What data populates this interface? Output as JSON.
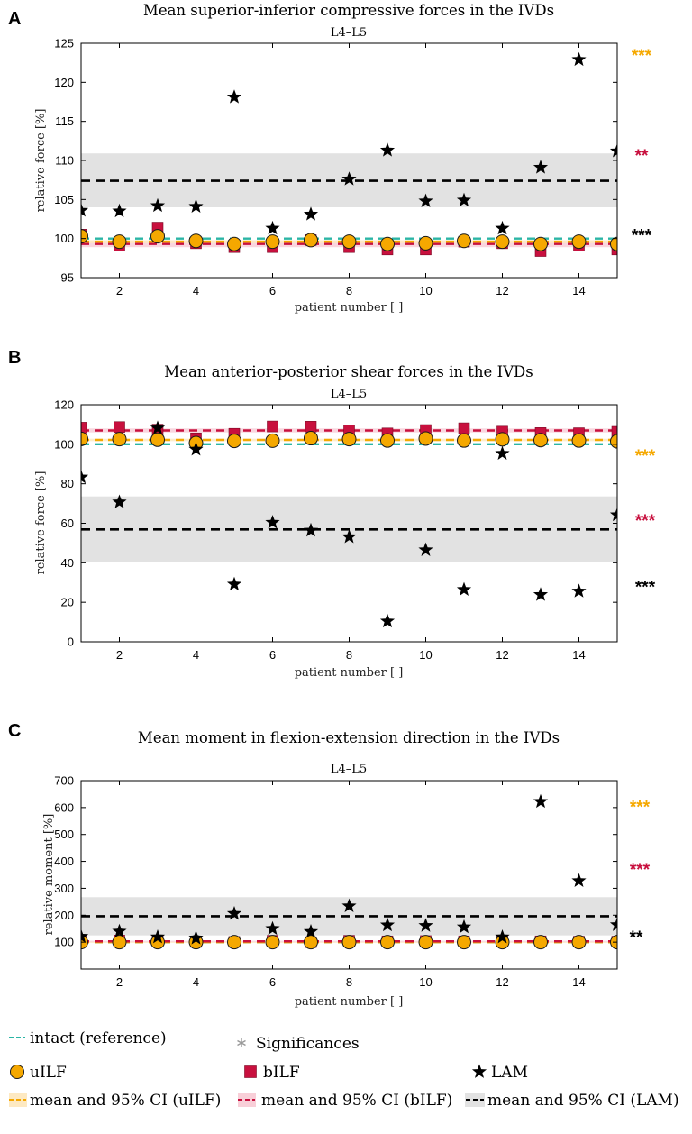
{
  "colors": {
    "intact": "#2bb5a5",
    "uilf": "#f5a800",
    "bilf": "#c8103e",
    "lam": "#000000",
    "lam_band": "#e2e2e2",
    "bilf_band": "#f8cfd8",
    "uilf_band": "#fde9c2"
  },
  "chart_data": [
    {
      "panel": "A",
      "type": "scatter",
      "title": "Mean superior-inferior compressive forces in the IVDs",
      "subtitle": "L4–L5",
      "xlabel": "patient number [ ]",
      "ylabel": "relative force [%]",
      "xlim": [
        1,
        15
      ],
      "ylim": [
        95,
        125
      ],
      "xticks": [
        2,
        4,
        6,
        8,
        10,
        12,
        14
      ],
      "yticks": [
        95,
        100,
        105,
        110,
        115,
        120,
        125
      ],
      "x": [
        1,
        2,
        3,
        4,
        5,
        6,
        7,
        8,
        9,
        10,
        11,
        12,
        13,
        14,
        15
      ],
      "series": [
        {
          "name": "uILF",
          "values": [
            100.3,
            99.6,
            100.3,
            99.7,
            99.3,
            99.6,
            99.8,
            99.6,
            99.3,
            99.4,
            99.7,
            99.6,
            99.3,
            99.6,
            99.3
          ]
        },
        {
          "name": "bILF",
          "values": [
            100.5,
            99.1,
            101.4,
            99.4,
            98.9,
            98.9,
            99.8,
            98.9,
            98.6,
            98.6,
            99.6,
            99.4,
            98.4,
            99.1,
            98.6
          ]
        },
        {
          "name": "LAM",
          "values": [
            103.6,
            103.5,
            104.2,
            104.1,
            118.1,
            101.3,
            103.1,
            107.6,
            111.3,
            104.8,
            104.9,
            101.3,
            109.1,
            122.9,
            111.2
          ]
        }
      ],
      "reference_lines": [
        {
          "name": "intact",
          "value": 100.0
        },
        {
          "name": "uILF mean",
          "value": 99.6,
          "ci": [
            99.4,
            99.8
          ]
        },
        {
          "name": "bILF mean",
          "value": 99.3,
          "ci": [
            98.9,
            99.7
          ]
        },
        {
          "name": "LAM mean",
          "value": 107.4,
          "ci": [
            104.0,
            110.9
          ]
        }
      ],
      "significance": [
        {
          "label": "***",
          "series": "uILF",
          "value": 123.5
        },
        {
          "label": "**",
          "series": "bILF",
          "value": 110.7
        },
        {
          "label": "***",
          "series": "LAM",
          "value": 100.5
        }
      ]
    },
    {
      "panel": "B",
      "type": "scatter",
      "title": "Mean anterior-posterior shear forces in the IVDs",
      "subtitle": "L4–L5",
      "xlabel": "patient number [ ]",
      "ylabel": "relative force [%]",
      "xlim": [
        1,
        15
      ],
      "ylim": [
        0,
        120
      ],
      "xticks": [
        2,
        4,
        6,
        8,
        10,
        12,
        14
      ],
      "yticks": [
        0,
        20,
        40,
        60,
        80,
        100,
        120
      ],
      "x": [
        1,
        2,
        3,
        4,
        5,
        6,
        7,
        8,
        9,
        10,
        11,
        12,
        13,
        14,
        15
      ],
      "series": [
        {
          "name": "uILF",
          "values": [
            102.7,
            102.6,
            102.3,
            100.6,
            101.7,
            101.8,
            103.1,
            102.6,
            101.9,
            102.9,
            101.9,
            102.5,
            102.1,
            101.9,
            101.5
          ]
        },
        {
          "name": "bILF",
          "values": [
            108.4,
            108.7,
            107.4,
            103.0,
            105.3,
            109.0,
            108.9,
            106.9,
            105.5,
            107.2,
            108.1,
            106.4,
            105.7,
            105.6,
            106.3
          ]
        },
        {
          "name": "LAM",
          "values": [
            83.3,
            70.7,
            108.2,
            97.4,
            29.1,
            60.4,
            56.4,
            53.1,
            10.4,
            46.5,
            26.4,
            95.3,
            23.8,
            25.6,
            64.2
          ]
        }
      ],
      "reference_lines": [
        {
          "name": "intact",
          "value": 100.0
        },
        {
          "name": "uILF mean",
          "value": 102.2,
          "ci": [
            101.6,
            102.8
          ]
        },
        {
          "name": "bILF mean",
          "value": 107.0,
          "ci": [
            106.0,
            108.0
          ]
        },
        {
          "name": "LAM mean",
          "value": 56.9,
          "ci": [
            40.2,
            73.6
          ]
        }
      ],
      "significance": [
        {
          "label": "***",
          "series": "uILF",
          "value": 94.5
        },
        {
          "label": "***",
          "series": "bILF",
          "value": 61.5
        },
        {
          "label": "***",
          "series": "LAM",
          "value": 28.0
        }
      ]
    },
    {
      "panel": "C",
      "type": "scatter",
      "title": "Mean moment in flexion-extension direction in the IVDs",
      "subtitle": "L4–L5",
      "xlabel": "patient number [ ]",
      "ylabel": "relative moment [%]",
      "xlim": [
        1,
        15
      ],
      "ylim": [
        0,
        700
      ],
      "ytick_min": 100,
      "xticks": [
        2,
        4,
        6,
        8,
        10,
        12,
        14
      ],
      "yticks": [
        100,
        200,
        300,
        400,
        500,
        600,
        700
      ],
      "x": [
        1,
        2,
        3,
        4,
        5,
        6,
        7,
        8,
        9,
        10,
        11,
        12,
        13,
        14,
        15
      ],
      "series": [
        {
          "name": "uILF",
          "values": [
            100,
            100,
            100,
            100,
            100,
            100,
            100,
            100,
            100,
            100,
            100,
            100,
            100,
            100,
            100
          ]
        },
        {
          "name": "bILF",
          "values": [
            102,
            106,
            104,
            101,
            101,
            105,
            100,
            105,
            103,
            104,
            103,
            104,
            103,
            102,
            102
          ]
        },
        {
          "name": "LAM",
          "values": [
            121,
            140,
            119,
            115,
            206,
            150,
            139,
            234,
            163,
            161,
            156,
            119,
            622,
            328,
            164
          ]
        }
      ],
      "reference_lines": [
        {
          "name": "intact",
          "value": 100
        },
        {
          "name": "uILF mean",
          "value": 100,
          "ci": [
            99,
            101
          ]
        },
        {
          "name": "bILF mean",
          "value": 103,
          "ci": [
            101,
            105
          ]
        },
        {
          "name": "LAM mean",
          "value": 196,
          "ci": [
            125,
            267
          ]
        }
      ],
      "significance": [
        {
          "label": "***",
          "series": "uILF",
          "value": 604
        },
        {
          "label": "***",
          "series": "bILF",
          "value": 372
        },
        {
          "label": "**",
          "series": "LAM",
          "value": 120
        }
      ]
    }
  ],
  "legend": {
    "intact": "intact (reference)",
    "significances": "Significances",
    "uilf": "uILF",
    "bilf": "bILF",
    "lam": "LAM",
    "uilf_mean": "mean and 95% CI (uILF)",
    "bilf_mean": "mean and 95% CI (bILF)",
    "lam_mean": "mean and 95% CI (LAM)"
  }
}
